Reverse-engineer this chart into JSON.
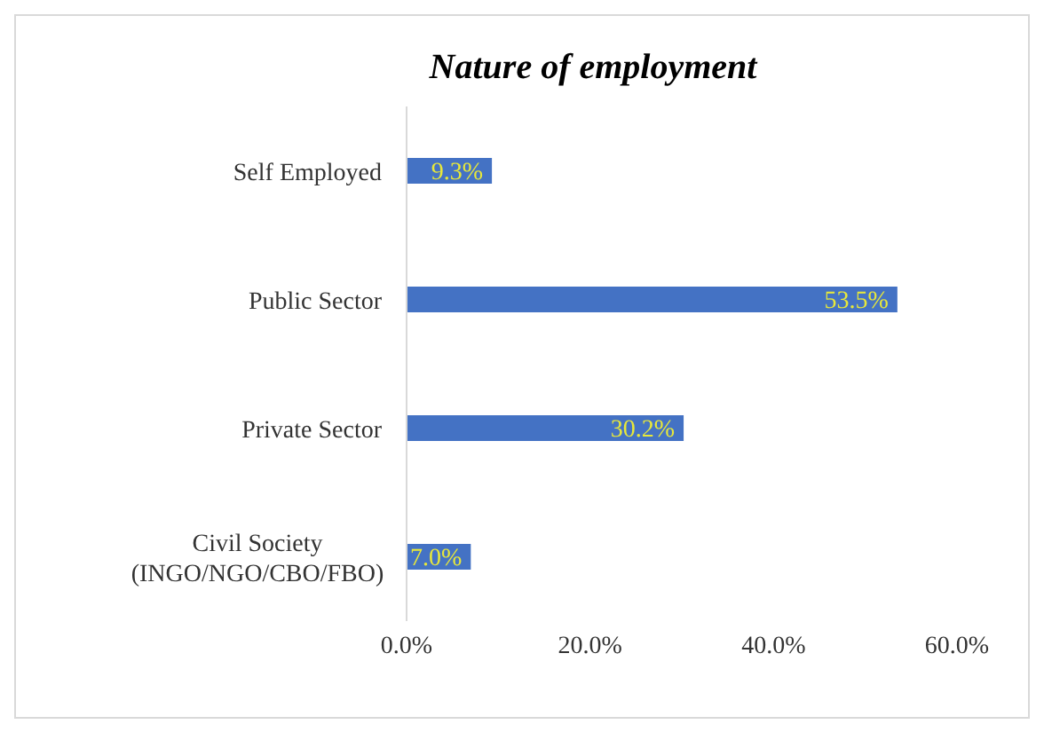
{
  "chart_data": {
    "type": "bar",
    "orientation": "horizontal",
    "title": "Nature of employment",
    "categories": [
      "Self Employed",
      "Public Sector",
      "Private Sector",
      "Civil Society (INGO/NGO/CBO/FBO)"
    ],
    "values": [
      9.3,
      53.5,
      30.2,
      7.0
    ],
    "value_labels": [
      "9.3%",
      "53.5%",
      "30.2%",
      "7.0%"
    ],
    "color": "#4472c4",
    "xlim": [
      0,
      60
    ],
    "xticks": [
      {
        "value": 0,
        "label": "0.0%"
      },
      {
        "value": 20,
        "label": "20.0%"
      },
      {
        "value": 40,
        "label": "40.0%"
      },
      {
        "value": 60,
        "label": "60.0%"
      }
    ],
    "grid": false
  }
}
